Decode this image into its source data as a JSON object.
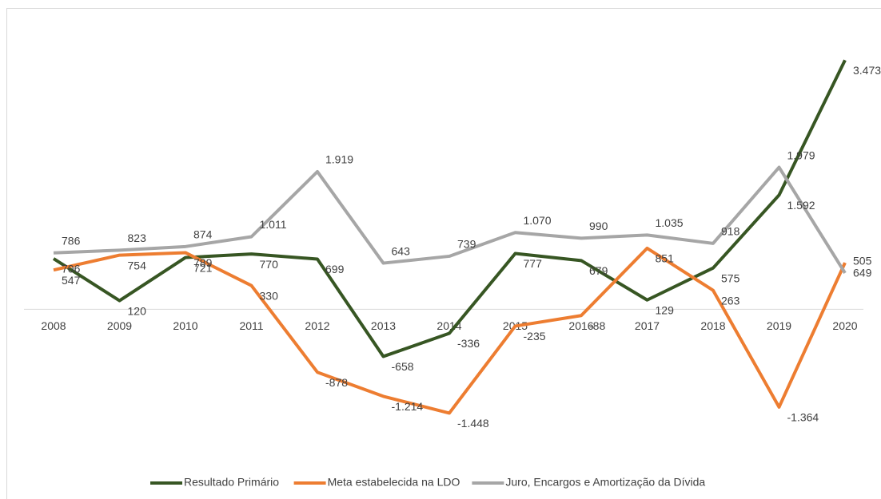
{
  "chart_data": {
    "type": "line",
    "categories": [
      "2008",
      "2009",
      "2010",
      "2011",
      "2012",
      "2013",
      "2014",
      "2015",
      "2016",
      "2017",
      "2018",
      "2019",
      "2020"
    ],
    "ylim": [
      -2000,
      4000
    ],
    "negative_label_color": "#ff0000",
    "series": [
      {
        "name": "Resultado Primário",
        "color": "#375623",
        "values": [
          706,
          120,
          721,
          770,
          699,
          -658,
          -336,
          777,
          679,
          129,
          575,
          1592,
          3473
        ],
        "value_labels": [
          "706",
          "120",
          "721",
          "770",
          "699",
          "-658",
          "-336",
          "777",
          "679",
          "129",
          "575",
          "1.592",
          "3.473"
        ]
      },
      {
        "name": "Meta estabelecida na LDO",
        "color": "#ed7d31",
        "values": [
          547,
          754,
          789,
          330,
          -878,
          -1214,
          -1448,
          -235,
          -88,
          851,
          263,
          -1364,
          649
        ],
        "value_labels": [
          "547",
          "754",
          "789",
          "330",
          "-878",
          "-1.214",
          "-1.448",
          "-235",
          "-88",
          "851",
          "263",
          "-1.364",
          "649"
        ]
      },
      {
        "name": "Juro, Encargos e Amortização da Dívida",
        "color": "#a6a6a6",
        "values": [
          786,
          823,
          874,
          1011,
          1919,
          643,
          739,
          1070,
          990,
          1035,
          918,
          1979,
          505
        ],
        "value_labels": [
          "786",
          "823",
          "874",
          "1.011",
          "1.919",
          "643",
          "739",
          "1.070",
          "990",
          "1.035",
          "918",
          "1.979",
          "505"
        ]
      }
    ]
  }
}
